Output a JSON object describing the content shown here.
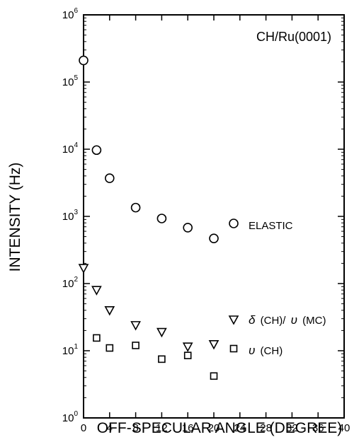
{
  "chart_data": {
    "type": "scatter",
    "title": "CH/Ru(0001)",
    "xlabel": "OFF-SPECULAR ANGLE (DEGREE)",
    "ylabel": "INTENSITY (Hz)",
    "xlim": [
      0,
      40
    ],
    "ylim": [
      1,
      1000000
    ],
    "yscale": "log",
    "x_ticks": [
      0,
      4,
      8,
      12,
      16,
      20,
      24,
      28,
      32,
      36,
      40
    ],
    "y_ticks": [
      {
        "value": 1,
        "base": "10",
        "exp": "0"
      },
      {
        "value": 10,
        "base": "10",
        "exp": "1"
      },
      {
        "value": 100,
        "base": "10",
        "exp": "2"
      },
      {
        "value": 1000,
        "base": "10",
        "exp": "3"
      },
      {
        "value": 10000,
        "base": "10",
        "exp": "4"
      },
      {
        "value": 100000,
        "base": "10",
        "exp": "5"
      },
      {
        "value": 1000000,
        "base": "10",
        "exp": "6"
      }
    ],
    "grid": false,
    "series": [
      {
        "name": "ELASTIC",
        "marker": "circle",
        "x": [
          0,
          2,
          4,
          8,
          12,
          16,
          20
        ],
        "y": [
          210000,
          9700,
          3700,
          1350,
          930,
          680,
          470
        ]
      },
      {
        "name": "δ (CH)/ υ (MC)",
        "marker": "triangle-down",
        "x": [
          0,
          2,
          4,
          8,
          12,
          16,
          20
        ],
        "y": [
          170,
          80,
          40,
          24,
          19,
          11.5,
          12.5
        ]
      },
      {
        "name": "υ (CH)",
        "marker": "square",
        "x": [
          2,
          4,
          8,
          12,
          16,
          20
        ],
        "y": [
          15.5,
          11,
          12,
          7.5,
          8.5,
          4.2
        ]
      }
    ],
    "legend": {
      "elastic": "ELASTIC",
      "delta_sym": "δ",
      "delta_rest": "(CH)/",
      "nu_sym": "υ",
      "mc": "(MC)",
      "nu_ch_sym": "υ",
      "ch": "(CH)"
    }
  }
}
